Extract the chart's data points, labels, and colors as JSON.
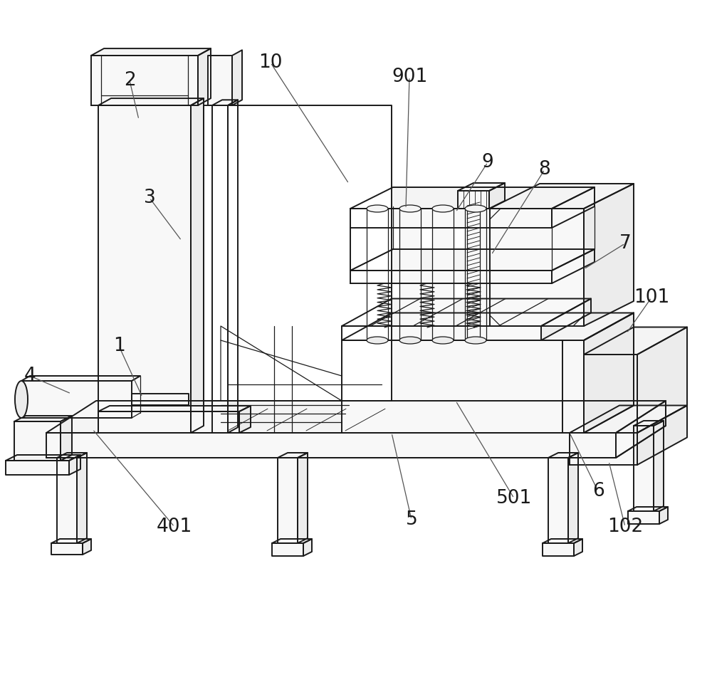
{
  "bg": "#ffffff",
  "lc": "#1a1a1a",
  "lw": 1.4,
  "tlw": 0.9,
  "label_fs": 19,
  "ann_lc": "#555555",
  "figw": 10.0,
  "figh": 9.58,
  "dpi": 100
}
